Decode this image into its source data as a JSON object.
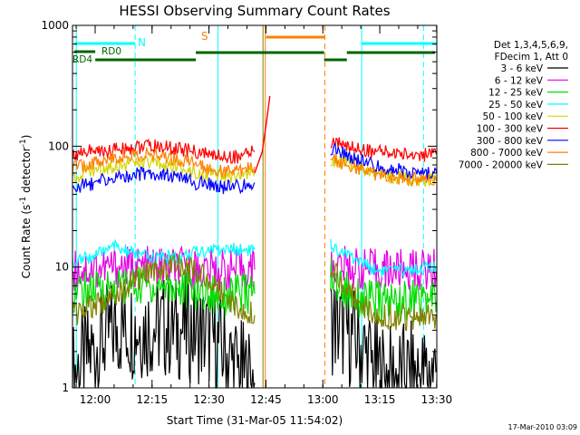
{
  "chart_data": {
    "type": "line",
    "title": "HESSI Observing Summary Count Rates",
    "xlabel": "Start Time (31-Mar-05 11:54:02)",
    "ylabel": "Count Rate (s",
    "ylabel_sup": "-1",
    "ylabel_mid": " detector",
    "ylabel_end": ")",
    "y_scale": "log",
    "ylim": [
      1,
      1000
    ],
    "xlim_minutes_after_start": [
      0,
      96
    ],
    "y_ticks": [
      "1",
      "10",
      "100",
      "1000"
    ],
    "x_ticks": [
      "12:00",
      "12:15",
      "12:30",
      "12:45",
      "13:00",
      "13:15",
      "13:30"
    ],
    "legend_header": [
      "Det 1,3,4,5,6,9,",
      "FDecim 1, Att 0"
    ],
    "footer": "17-Mar-2010 03:09",
    "annotations": {
      "N": "N",
      "S": "S",
      "RD0": "RD0",
      "RD4": "RD4"
    },
    "series": [
      {
        "name": "3 - 6 keV",
        "color": "#000000",
        "segments": [
          {
            "x": [
              0,
              8,
              12,
              16,
              20,
              24,
              28,
              32,
              36,
              40,
              44,
              48
            ],
            "y": [
              1.3,
              2.5,
              3.2,
              3.2,
              3.2,
              3.2,
              3.1,
              3.0,
              2.7,
              2.0,
              1.4,
              1.1
            ]
          },
          {
            "x": [
              68,
              72,
              76,
              80,
              84,
              88,
              92,
              96
            ],
            "y": [
              3.5,
              3.0,
              2.2,
              1.4,
              1.2,
              1.3,
              1.3,
              1.4
            ]
          }
        ]
      },
      {
        "name": "6 - 12 keV",
        "color": "#e400e4",
        "segments": [
          {
            "x": [
              0,
              8,
              12,
              16,
              20,
              24,
              28,
              32,
              36,
              40,
              44,
              48
            ],
            "y": [
              9.5,
              9.8,
              10.0,
              10.0,
              10.0,
              10.0,
              9.8,
              9.7,
              9.5,
              9.4,
              9.4,
              9.5
            ]
          },
          {
            "x": [
              68,
              72,
              76,
              80,
              84,
              88,
              92,
              96
            ],
            "y": [
              10.5,
              10.0,
              9.6,
              9.5,
              9.5,
              9.5,
              9.5,
              9.5
            ]
          }
        ]
      },
      {
        "name": "12 - 25 keV",
        "color": "#00dd00",
        "segments": [
          {
            "x": [
              0,
              8,
              12,
              16,
              20,
              24,
              28,
              32,
              36,
              40,
              44,
              48
            ],
            "y": [
              6.0,
              6.5,
              7.0,
              7.0,
              7.0,
              7.0,
              6.8,
              6.5,
              6.0,
              5.8,
              6.0,
              6.0
            ]
          },
          {
            "x": [
              68,
              72,
              76,
              80,
              84,
              88,
              92,
              96
            ],
            "y": [
              8.0,
              6.5,
              5.5,
              5.2,
              5.2,
              5.3,
              5.3,
              5.3
            ]
          }
        ]
      },
      {
        "name": "25 - 50 keV",
        "color": "#00ffff",
        "segments": [
          {
            "x": [
              0,
              8,
              10,
              12,
              16,
              20,
              24,
              28,
              32,
              36,
              40,
              44,
              48
            ],
            "y": [
              11,
              13,
              16,
              14,
              13,
              12,
              12,
              12,
              13,
              14,
              14,
              14,
              14
            ]
          },
          {
            "x": [
              68,
              72,
              76,
              80,
              84,
              88,
              92,
              96
            ],
            "y": [
              15,
              13,
              11,
              9.5,
              9.2,
              9.5,
              9.8,
              9.8
            ]
          }
        ]
      },
      {
        "name": "50 - 100 keV",
        "color": "#d4d400",
        "segments": [
          {
            "x": [
              0,
              4,
              8,
              12,
              16,
              20,
              24,
              28,
              32,
              36,
              40,
              44,
              48
            ],
            "y": [
              55,
              62,
              65,
              70,
              72,
              72,
              70,
              68,
              62,
              58,
              55,
              55,
              60
            ]
          },
          {
            "x": [
              68,
              72,
              76,
              80,
              84,
              88,
              92,
              96
            ],
            "y": [
              78,
              72,
              64,
              58,
              55,
              54,
              53,
              53
            ]
          }
        ]
      },
      {
        "name": "100 - 300 keV",
        "color": "#ff0000",
        "segments": [
          {
            "x": [
              0,
              4,
              8,
              12,
              16,
              20,
              24,
              28,
              32,
              36,
              40,
              44,
              48
            ],
            "y": [
              85,
              92,
              90,
              95,
              98,
              100,
              98,
              95,
              90,
              85,
              82,
              82,
              90
            ]
          },
          {
            "x": [
              68,
              72,
              76,
              80,
              84,
              88,
              92,
              96
            ],
            "y": [
              110,
              100,
              95,
              90,
              88,
              86,
              85,
              85
            ]
          }
        ]
      },
      {
        "name": "300 - 800 keV",
        "color": "#0000ff",
        "segments": [
          {
            "x": [
              0,
              4,
              8,
              12,
              16,
              20,
              24,
              28,
              32,
              36,
              40,
              44,
              48
            ],
            "y": [
              45,
              48,
              52,
              55,
              58,
              60,
              58,
              55,
              50,
              48,
              46,
              46,
              50
            ]
          },
          {
            "x": [
              68,
              72,
              76,
              80,
              84,
              88,
              92,
              96
            ],
            "y": [
              95,
              85,
              75,
              68,
              64,
              62,
              60,
              60
            ]
          }
        ]
      },
      {
        "name": "800 - 7000 keV",
        "color": "#ff8000",
        "segments": [
          {
            "x": [
              0,
              4,
              8,
              12,
              16,
              20,
              24,
              28,
              32,
              36,
              40,
              44,
              48
            ],
            "y": [
              65,
              70,
              78,
              82,
              85,
              85,
              82,
              78,
              72,
              66,
              62,
              62,
              68
            ]
          },
          {
            "x": [
              68,
              72,
              76,
              80,
              84,
              88,
              92,
              96
            ],
            "y": [
              80,
              72,
              64,
              58,
              56,
              54,
              53,
              53
            ]
          }
        ]
      },
      {
        "name": "7000 - 20000 keV",
        "color": "#808000",
        "segments": [
          {
            "x": [
              0,
              4,
              8,
              12,
              16,
              20,
              24,
              28,
              32,
              36,
              40,
              44,
              48
            ],
            "y": [
              4.0,
              4.5,
              5.0,
              6.0,
              7.5,
              9.0,
              10.0,
              10.0,
              9.5,
              8.0,
              6.0,
              4.5,
              4.0
            ]
          },
          {
            "x": [
              68,
              72,
              76,
              80,
              84,
              88,
              92,
              96
            ],
            "y": [
              10.0,
              7.0,
              5.0,
              4.0,
              3.8,
              3.8,
              3.8,
              3.8
            ]
          }
        ]
      }
    ],
    "flare_spike": {
      "color": "#ff0000",
      "x": [
        48,
        50,
        51,
        52
      ],
      "y": [
        60,
        90,
        150,
        260
      ]
    }
  }
}
